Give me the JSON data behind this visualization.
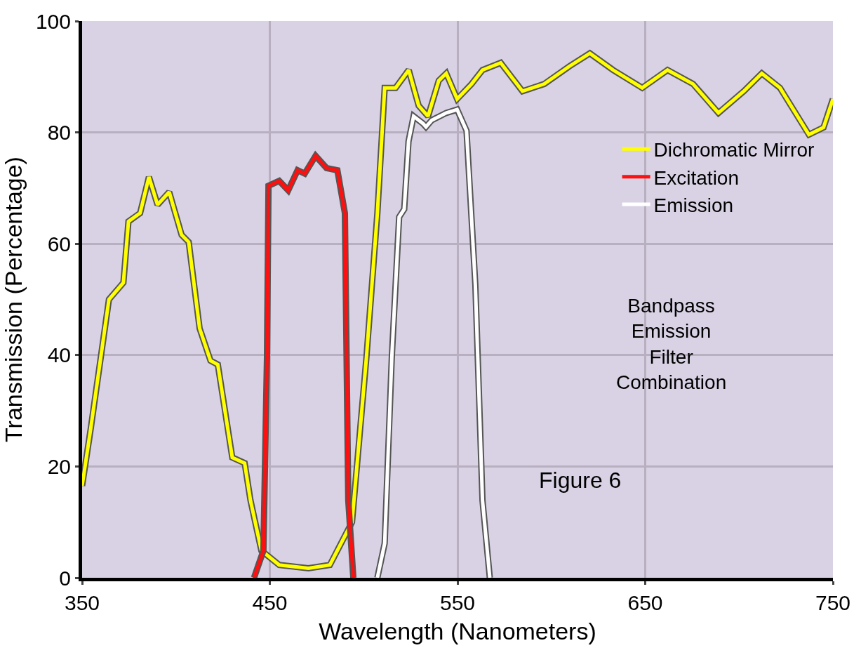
{
  "chart_data": {
    "type": "line",
    "xlabel": "Wavelength (Nanometers)",
    "ylabel": "Transmission (Percentage)",
    "xlim": [
      350,
      750
    ],
    "xticks": [
      350,
      450,
      550,
      650,
      750
    ],
    "ylim": [
      0,
      100
    ],
    "yticks": [
      0,
      20,
      40,
      60,
      80,
      100
    ],
    "grid": true,
    "legend": "right",
    "marker": "none",
    "line_style": "solid",
    "annotations": [
      "Bandpass Emission Filter Combination",
      "Figure 6"
    ],
    "series": [
      {
        "name": "Dichromatic Mirror",
        "color": "#ffff00",
        "x": [
          350,
          354.6,
          364.3,
          372,
          374.7,
          380.9,
          385.6,
          390.2,
          396.4,
          403,
          406.8,
          412.6,
          418.4,
          422.3,
          430,
          436.6,
          439.7,
          445.5,
          455,
          470.6,
          482,
          493.8,
          501.5,
          507.3,
          511.2,
          517,
          524,
          529.3,
          534.3,
          540,
          544,
          549.8,
          557.5,
          563.3,
          573,
          584.6,
          596.2,
          609.7,
          620.5,
          632.9,
          648.4,
          661.9,
          675.5,
          689,
          702.5,
          712.1,
          721.8,
          737.2,
          745,
          750
        ],
        "values": [
          16.5,
          26.8,
          50,
          53,
          64,
          65.5,
          72,
          67,
          69.3,
          61.6,
          60.3,
          44.8,
          39,
          38.3,
          21.6,
          20.6,
          13.9,
          4.9,
          2.3,
          1.7,
          2.3,
          10,
          39.7,
          65.5,
          88,
          88,
          91.2,
          84.8,
          82.9,
          89.3,
          90.6,
          86,
          88.7,
          91.2,
          92.5,
          87.4,
          88.7,
          91.9,
          94.2,
          91.2,
          88,
          91.2,
          88.7,
          83.5,
          87.4,
          90.6,
          88,
          79.6,
          80.9,
          86
        ]
      },
      {
        "name": "Excitation",
        "color": "#ff1010",
        "x": [
          441.6,
          446.6,
          448.5,
          449.3,
          455,
          459.8,
          464.8,
          468.6,
          474.4,
          480.2,
          486,
          490,
          491.8,
          494.5
        ],
        "values": [
          0,
          4.9,
          39.7,
          70.4,
          71.3,
          69.6,
          73.2,
          72.6,
          75.8,
          73.6,
          73.2,
          65.5,
          13.9,
          0
        ]
      },
      {
        "name": "Emission",
        "color": "#ffffff",
        "x": [
          507.3,
          511.2,
          515,
          518.9,
          521.6,
          523.9,
          526.6,
          531.6,
          533.2,
          536.3,
          544,
          549.8,
          554.8,
          559.5,
          563.3,
          567.2
        ],
        "values": [
          0,
          6.2,
          39.7,
          64.8,
          66.2,
          78.4,
          82.9,
          81.6,
          81,
          82.2,
          83.5,
          84.1,
          80.3,
          52.6,
          13.9,
          0
        ]
      }
    ]
  }
}
